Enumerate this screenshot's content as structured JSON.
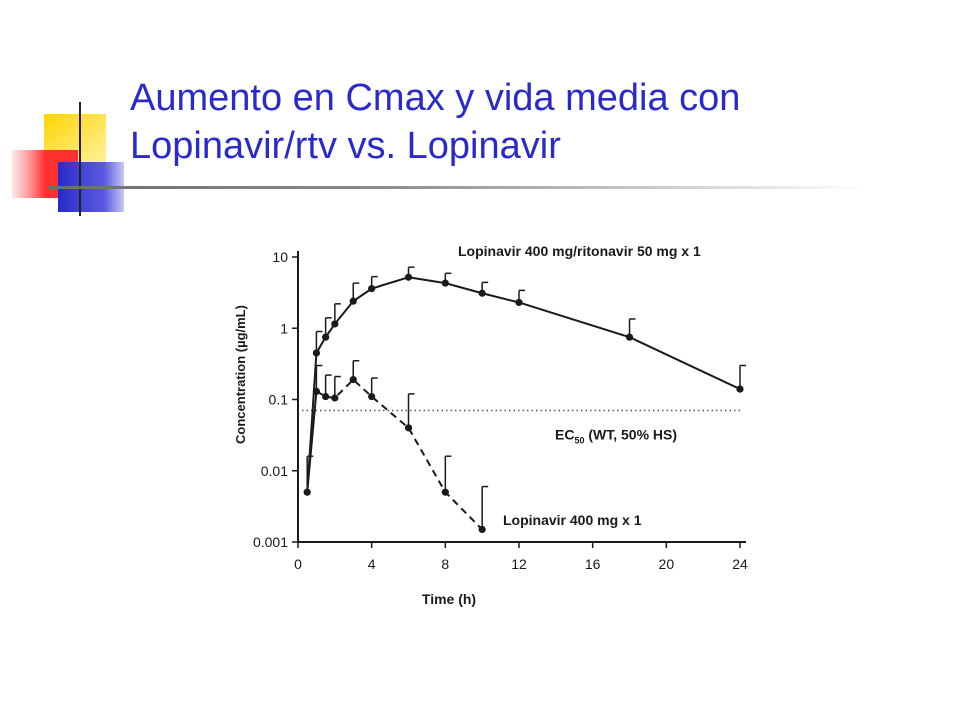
{
  "slide": {
    "title_line1": "Aumento en Cmax y vida media con",
    "title_line2": "Lopinavir/rtv vs. Lopinavir"
  },
  "colors": {
    "title": "#2a2acc",
    "deco_yellow": "#ffd400",
    "deco_red": "#ff3030",
    "deco_blue": "#2a2acc"
  },
  "chart_data": {
    "type": "line",
    "xlabel": "Time (h)",
    "ylabel": "Concentration (µg/mL)",
    "x_ticks": [
      0,
      4,
      8,
      12,
      16,
      20,
      24
    ],
    "y_ticks": [
      0.001,
      0.01,
      0.1,
      1,
      10
    ],
    "y_tick_labels": [
      "0.001",
      "0.01",
      "0.1",
      "1",
      "10"
    ],
    "y_scale": "log",
    "xlim": [
      0,
      24
    ],
    "ylim": [
      0.001,
      10
    ],
    "series": [
      {
        "name": "Lopinavir 400 mg/ritonavir 50 mg x 1",
        "line_style": "solid",
        "x": [
          0.5,
          1,
          1.5,
          2,
          3,
          4,
          6,
          8,
          10,
          12,
          18,
          24
        ],
        "y": [
          0.005,
          0.45,
          0.75,
          1.15,
          2.4,
          3.6,
          5.2,
          4.3,
          3.1,
          2.3,
          0.75,
          0.14
        ],
        "err_upper": [
          0.016,
          0.9,
          1.4,
          2.2,
          4.3,
          5.3,
          7.2,
          5.9,
          4.4,
          3.4,
          1.35,
          0.3
        ]
      },
      {
        "name": "Lopinavir 400 mg x 1",
        "line_style": "dashed",
        "x": [
          1,
          1.5,
          2,
          3,
          4,
          6,
          8,
          10
        ],
        "y": [
          0.13,
          0.11,
          0.105,
          0.19,
          0.11,
          0.04,
          0.005,
          0.0015
        ],
        "err_upper": [
          0.3,
          0.22,
          0.21,
          0.35,
          0.2,
          0.12,
          0.016,
          0.006
        ]
      }
    ],
    "reference_line": {
      "label_main": "EC",
      "label_sub": "50",
      "label_rest": " (WT, 50% HS)",
      "y": 0.07,
      "style": "dotted"
    }
  }
}
